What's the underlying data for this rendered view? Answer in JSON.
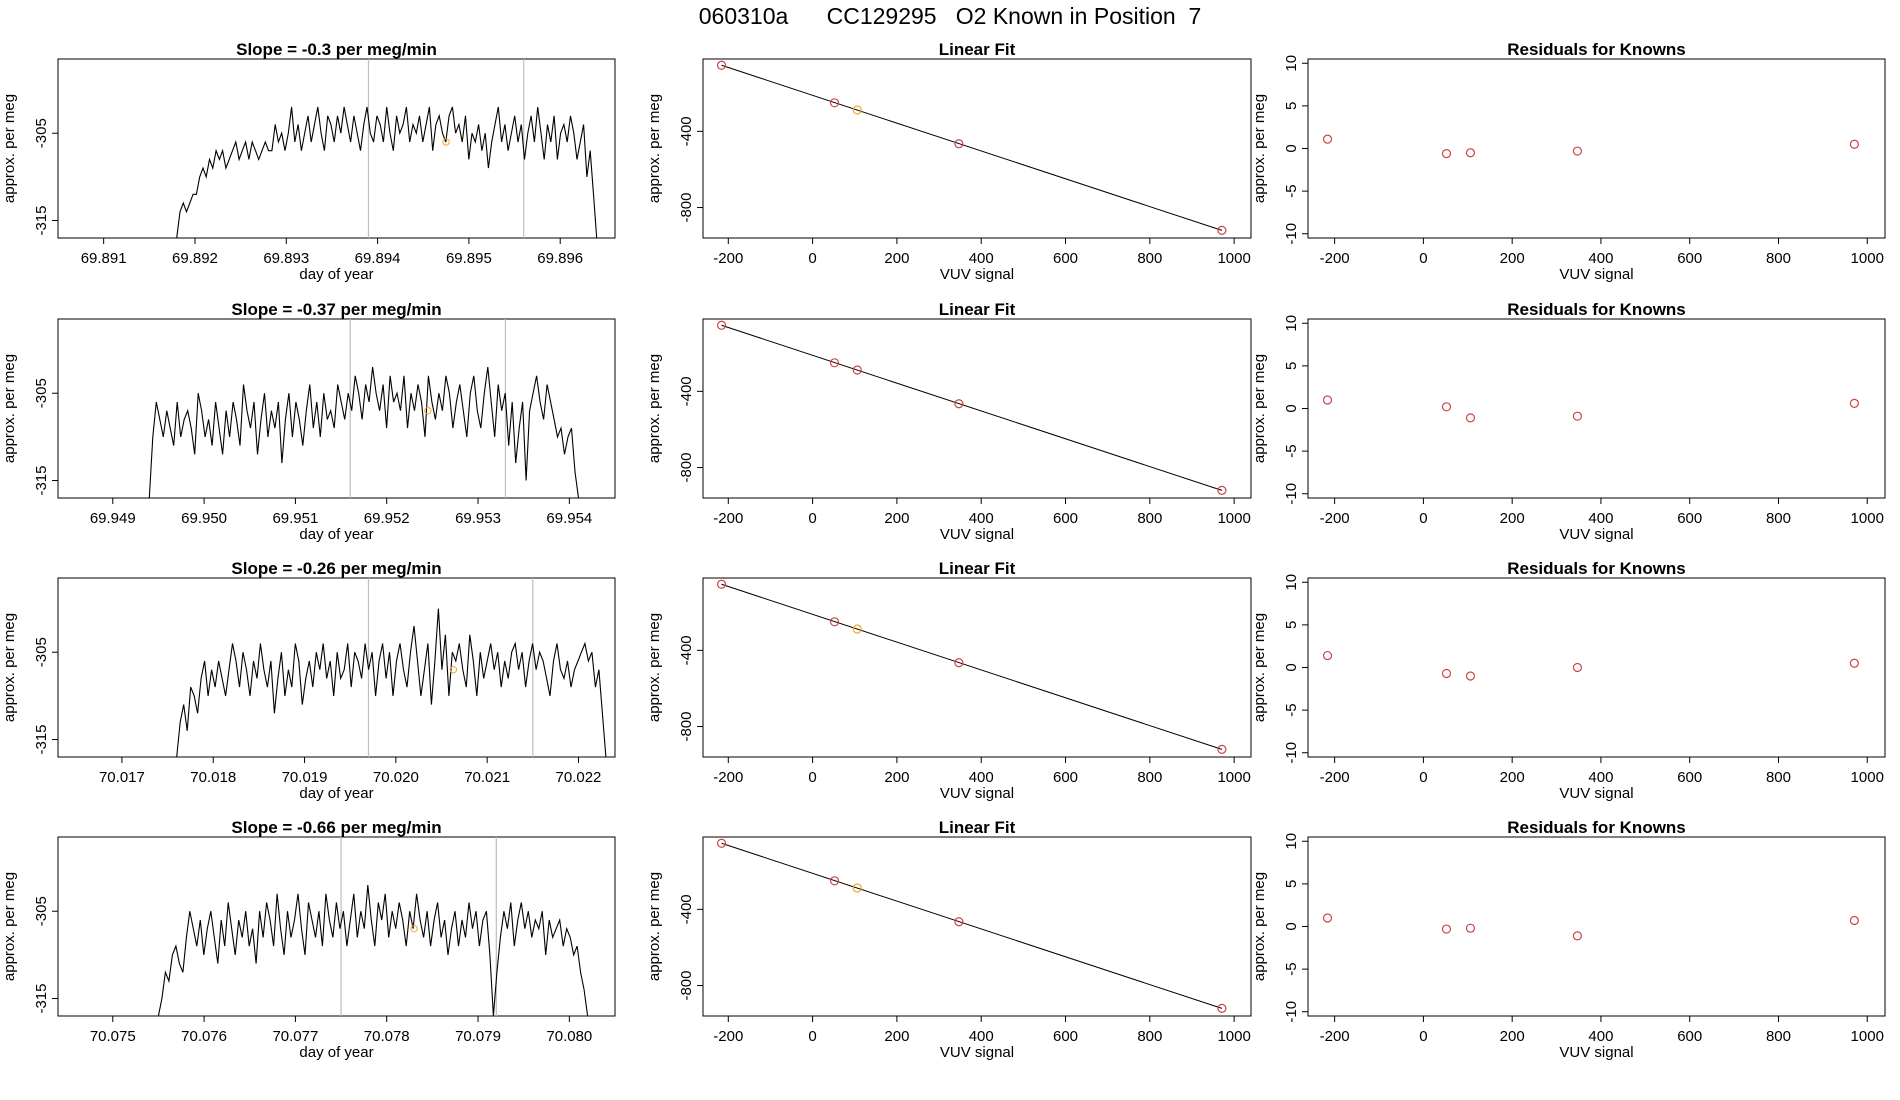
{
  "title": "060310a      CC129295   O2 Known in Position  7",
  "colors": {
    "trace": "#000000",
    "vline": "#bebebe",
    "orange": "#f5a623",
    "red": "#cd4444"
  },
  "chart_data": [
    {
      "type": "line",
      "title": "Slope =  -0.3  per meg/min",
      "xlabel": "day of year",
      "ylabel": "approx. per meg",
      "xlim": [
        69.8905,
        69.8966
      ],
      "ylim": [
        -317,
        -296.5
      ],
      "x_ticks": [
        "69.891",
        "69.892",
        "69.893",
        "69.894",
        "69.895",
        "69.896"
      ],
      "y_ticks": [
        "-315",
        "-305"
      ],
      "vlines": [
        69.8939,
        69.8956
      ],
      "trace": {
        "x_start": 69.8918,
        "x_end": 69.8964,
        "values": [
          -317,
          -314,
          -313,
          -314,
          -313,
          -312,
          -312,
          -310,
          -309,
          -310,
          -308,
          -309,
          -307,
          -308,
          -307,
          -309,
          -308,
          -307,
          -306,
          -308,
          -307,
          -306,
          -308,
          -306,
          -307,
          -308,
          -307,
          -306,
          -307,
          -307,
          -304,
          -306,
          -305,
          -307,
          -305,
          -302,
          -306,
          -304,
          -307,
          -305,
          -303,
          -306,
          -304,
          -302,
          -305,
          -307,
          -303,
          -304,
          -306,
          -303,
          -305,
          -302,
          -304,
          -306,
          -303,
          -305,
          -307,
          -304,
          -302,
          -305,
          -306,
          -303,
          -304,
          -306,
          -302,
          -305,
          -307,
          -303,
          -305,
          -304,
          -302,
          -306,
          -304,
          -305,
          -303,
          -306,
          -304,
          -302,
          -307,
          -304,
          -303,
          -305,
          -306,
          -303,
          -302,
          -305,
          -304,
          -306,
          -303,
          -308,
          -305,
          -306,
          -304,
          -307,
          -305,
          -309,
          -306,
          -304,
          -302,
          -306,
          -304,
          -307,
          -305,
          -303,
          -306,
          -304,
          -308,
          -305,
          -303,
          -306,
          -302,
          -305,
          -308,
          -304,
          -306,
          -303,
          -308,
          -305,
          -304,
          -306,
          -303,
          -305,
          -308,
          -306,
          -304,
          -310,
          -307,
          -312,
          -317
        ]
      },
      "marker": {
        "x": 69.89475,
        "y": -306
      }
    },
    {
      "type": "scatter",
      "title": "Linear Fit",
      "xlabel": "VUV signal",
      "ylabel": "approx. per meg",
      "xlim": [
        -260,
        1040
      ],
      "ylim": [
        -960,
        -20
      ],
      "x_ticks": [
        "-200",
        "0",
        "200",
        "400",
        "600",
        "800",
        "1000"
      ],
      "y_ticks": [
        "-800",
        "-400"
      ],
      "points": [
        {
          "x": -216,
          "y": -53,
          "color": "red"
        },
        {
          "x": 52,
          "y": -250,
          "color": "red"
        },
        {
          "x": 106,
          "y": -288,
          "color": "orange"
        },
        {
          "x": 347,
          "y": -465,
          "color": "red"
        },
        {
          "x": 971,
          "y": -920,
          "color": "red"
        }
      ],
      "fit_line": {
        "x": [
          -216,
          971
        ],
        "y": [
          -53,
          -920
        ]
      }
    },
    {
      "type": "scatter",
      "title": "Residuals for Knowns",
      "xlabel": "VUV signal",
      "ylabel": "approx. per meg",
      "xlim": [
        -260,
        1040
      ],
      "ylim": [
        -10.5,
        10.5
      ],
      "x_ticks": [
        "-200",
        "0",
        "200",
        "400",
        "600",
        "800",
        "1000"
      ],
      "y_ticks": [
        "-10",
        "-5",
        "0",
        "5",
        "10"
      ],
      "points": [
        {
          "x": -216,
          "y": 1.1,
          "color": "red"
        },
        {
          "x": 52,
          "y": -0.6,
          "color": "red"
        },
        {
          "x": 106,
          "y": -0.5,
          "color": "red"
        },
        {
          "x": 347,
          "y": -0.3,
          "color": "red"
        },
        {
          "x": 971,
          "y": 0.5,
          "color": "red"
        }
      ]
    },
    {
      "type": "line",
      "title": "Slope =  -0.37  per meg/min",
      "xlabel": "day of year",
      "ylabel": "approx. per meg",
      "xlim": [
        69.9484,
        69.9545
      ],
      "ylim": [
        -317,
        -296.5
      ],
      "x_ticks": [
        "69.949",
        "69.950",
        "69.951",
        "69.952",
        "69.953",
        "69.954"
      ],
      "y_ticks": [
        "-315",
        "-305"
      ],
      "vlines": [
        69.9516,
        69.9533
      ],
      "trace": {
        "x_start": 69.9494,
        "x_end": 69.9541,
        "values": [
          -317,
          -310,
          -306,
          -308,
          -310,
          -307,
          -309,
          -311,
          -306,
          -310,
          -308,
          -307,
          -309,
          -312,
          -305,
          -307,
          -310,
          -308,
          -311,
          -306,
          -309,
          -312,
          -307,
          -310,
          -306,
          -308,
          -311,
          -304,
          -307,
          -309,
          -306,
          -312,
          -308,
          -305,
          -310,
          -307,
          -309,
          -306,
          -313,
          -308,
          -305,
          -310,
          -306,
          -308,
          -311,
          -307,
          -304,
          -309,
          -306,
          -310,
          -305,
          -308,
          -307,
          -309,
          -304,
          -306,
          -308,
          -305,
          -307,
          -303,
          -305,
          -308,
          -304,
          -306,
          -302,
          -305,
          -307,
          -304,
          -309,
          -303,
          -306,
          -305,
          -307,
          -303,
          -309,
          -305,
          -307,
          -304,
          -306,
          -310,
          -303,
          -306,
          -308,
          -305,
          -307,
          -303,
          -305,
          -309,
          -306,
          -304,
          -307,
          -310,
          -305,
          -303,
          -307,
          -309,
          -305,
          -302,
          -306,
          -310,
          -304,
          -307,
          -305,
          -311,
          -306,
          -313,
          -309,
          -306,
          -315,
          -307,
          -305,
          -303,
          -306,
          -308,
          -304,
          -306,
          -308,
          -310,
          -309,
          -312,
          -310,
          -309,
          -314,
          -317
        ]
      },
      "marker": {
        "x": 69.95245,
        "y": -307
      }
    },
    {
      "type": "scatter",
      "title": "Linear Fit",
      "xlabel": "VUV signal",
      "ylabel": "approx. per meg",
      "xlim": [
        -260,
        1040
      ],
      "ylim": [
        -960,
        -20
      ],
      "x_ticks": [
        "-200",
        "0",
        "200",
        "400",
        "600",
        "800",
        "1000"
      ],
      "y_ticks": [
        "-800",
        "-400"
      ],
      "points": [
        {
          "x": -216,
          "y": -53,
          "color": "red"
        },
        {
          "x": 52,
          "y": -250,
          "color": "red"
        },
        {
          "x": 106,
          "y": -288,
          "color": "red"
        },
        {
          "x": 347,
          "y": -465,
          "color": "red"
        },
        {
          "x": 971,
          "y": -920,
          "color": "red"
        }
      ],
      "fit_line": {
        "x": [
          -216,
          971
        ],
        "y": [
          -53,
          -920
        ]
      }
    },
    {
      "type": "scatter",
      "title": "Residuals for Knowns",
      "xlabel": "VUV signal",
      "ylabel": "approx. per meg",
      "xlim": [
        -260,
        1040
      ],
      "ylim": [
        -10.5,
        10.5
      ],
      "x_ticks": [
        "-200",
        "0",
        "200",
        "400",
        "600",
        "800",
        "1000"
      ],
      "y_ticks": [
        "-10",
        "-5",
        "0",
        "5",
        "10"
      ],
      "points": [
        {
          "x": -216,
          "y": 1.0,
          "color": "red"
        },
        {
          "x": 52,
          "y": 0.2,
          "color": "red"
        },
        {
          "x": 106,
          "y": -1.1,
          "color": "red"
        },
        {
          "x": 347,
          "y": -0.9,
          "color": "red"
        },
        {
          "x": 971,
          "y": 0.6,
          "color": "red"
        }
      ]
    },
    {
      "type": "line",
      "title": "Slope =  -0.26  per meg/min",
      "xlabel": "day of year",
      "ylabel": "approx. per meg",
      "xlim": [
        70.0163,
        70.0224
      ],
      "ylim": [
        -317,
        -296.5
      ],
      "x_ticks": [
        "70.017",
        "70.018",
        "70.019",
        "70.020",
        "70.021",
        "70.022"
      ],
      "y_ticks": [
        "-315",
        "-305"
      ],
      "vlines": [
        70.0197,
        70.0215
      ],
      "trace": {
        "x_start": 70.0176,
        "x_end": 70.0223,
        "values": [
          -317,
          -313,
          -311,
          -314,
          -309,
          -310,
          -312,
          -308,
          -306,
          -310,
          -307,
          -309,
          -306,
          -308,
          -310,
          -307,
          -304,
          -306,
          -309,
          -305,
          -307,
          -310,
          -306,
          -308,
          -304,
          -307,
          -309,
          -306,
          -312,
          -308,
          -305,
          -310,
          -307,
          -309,
          -304,
          -306,
          -311,
          -308,
          -306,
          -309,
          -305,
          -307,
          -304,
          -308,
          -306,
          -310,
          -305,
          -308,
          -307,
          -304,
          -309,
          -305,
          -306,
          -308,
          -304,
          -307,
          -305,
          -310,
          -306,
          -304,
          -308,
          -305,
          -310,
          -306,
          -304,
          -307,
          -309,
          -305,
          -302,
          -306,
          -310,
          -307,
          -304,
          -311,
          -306,
          -300,
          -307,
          -303,
          -310,
          -305,
          -306,
          -304,
          -307,
          -309,
          -303,
          -306,
          -310,
          -305,
          -308,
          -306,
          -304,
          -307,
          -305,
          -309,
          -306,
          -308,
          -305,
          -304,
          -307,
          -305,
          -309,
          -306,
          -304,
          -307,
          -305,
          -306,
          -308,
          -310,
          -306,
          -304,
          -307,
          -308,
          -306,
          -309,
          -307,
          -306,
          -305,
          -304,
          -306,
          -305,
          -309,
          -307,
          -312,
          -317
        ]
      },
      "marker": {
        "x": 70.02063,
        "y": -307
      }
    },
    {
      "type": "scatter",
      "title": "Linear Fit",
      "xlabel": "VUV signal",
      "ylabel": "approx. per meg",
      "xlim": [
        -260,
        1040
      ],
      "ylim": [
        -960,
        -20
      ],
      "x_ticks": [
        "-200",
        "0",
        "200",
        "400",
        "600",
        "800",
        "1000"
      ],
      "y_ticks": [
        "-800",
        "-400"
      ],
      "points": [
        {
          "x": -216,
          "y": -53,
          "color": "red"
        },
        {
          "x": 52,
          "y": -250,
          "color": "red"
        },
        {
          "x": 106,
          "y": -288,
          "color": "orange"
        },
        {
          "x": 347,
          "y": -465,
          "color": "red"
        },
        {
          "x": 971,
          "y": -920,
          "color": "red"
        }
      ],
      "fit_line": {
        "x": [
          -216,
          971
        ],
        "y": [
          -53,
          -920
        ]
      }
    },
    {
      "type": "scatter",
      "title": "Residuals for Knowns",
      "xlabel": "VUV signal",
      "ylabel": "approx. per meg",
      "xlim": [
        -260,
        1040
      ],
      "ylim": [
        -10.5,
        10.5
      ],
      "x_ticks": [
        "-200",
        "0",
        "200",
        "400",
        "600",
        "800",
        "1000"
      ],
      "y_ticks": [
        "-10",
        "-5",
        "0",
        "5",
        "10"
      ],
      "points": [
        {
          "x": -216,
          "y": 1.4,
          "color": "red"
        },
        {
          "x": 52,
          "y": -0.7,
          "color": "red"
        },
        {
          "x": 106,
          "y": -1.0,
          "color": "red"
        },
        {
          "x": 347,
          "y": 0.0,
          "color": "red"
        },
        {
          "x": 971,
          "y": 0.5,
          "color": "red"
        }
      ]
    },
    {
      "type": "line",
      "title": "Slope =  -0.66  per meg/min",
      "xlabel": "day of year",
      "ylabel": "approx. per meg",
      "xlim": [
        70.0744,
        70.0805
      ],
      "ylim": [
        -317,
        -296.5
      ],
      "x_ticks": [
        "70.075",
        "70.076",
        "70.077",
        "70.078",
        "70.079",
        "70.080"
      ],
      "y_ticks": [
        "-315",
        "-305"
      ],
      "vlines": [
        70.0775,
        70.0792
      ],
      "trace": {
        "x_start": 70.0755,
        "x_end": 70.0802,
        "values": [
          -317,
          -315,
          -312,
          -313,
          -310,
          -309,
          -311,
          -312,
          -308,
          -305,
          -307,
          -309,
          -306,
          -310,
          -307,
          -305,
          -308,
          -311,
          -306,
          -309,
          -304,
          -307,
          -310,
          -306,
          -308,
          -305,
          -309,
          -307,
          -311,
          -305,
          -308,
          -304,
          -306,
          -309,
          -303,
          -307,
          -310,
          -305,
          -308,
          -306,
          -303,
          -307,
          -310,
          -304,
          -306,
          -308,
          -305,
          -309,
          -303,
          -306,
          -308,
          -304,
          -307,
          -305,
          -309,
          -306,
          -303,
          -308,
          -305,
          -307,
          -302,
          -306,
          -309,
          -304,
          -306,
          -303,
          -308,
          -305,
          -307,
          -304,
          -306,
          -309,
          -305,
          -307,
          -303,
          -306,
          -308,
          -305,
          -309,
          -306,
          -304,
          -308,
          -306,
          -310,
          -307,
          -305,
          -309,
          -306,
          -308,
          -304,
          -307,
          -305,
          -309,
          -306,
          -305,
          -310,
          -317,
          -312,
          -308,
          -305,
          -307,
          -304,
          -309,
          -306,
          -304,
          -307,
          -305,
          -308,
          -306,
          -307,
          -305,
          -310,
          -306,
          -308,
          -307,
          -306,
          -309,
          -307,
          -308,
          -310,
          -309,
          -312,
          -314,
          -317
        ]
      },
      "marker": {
        "x": 70.0783,
        "y": -307
      }
    },
    {
      "type": "scatter",
      "title": "Linear Fit",
      "xlabel": "VUV signal",
      "ylabel": "approx. per meg",
      "xlim": [
        -260,
        1040
      ],
      "ylim": [
        -960,
        -20
      ],
      "x_ticks": [
        "-200",
        "0",
        "200",
        "400",
        "600",
        "800",
        "1000"
      ],
      "y_ticks": [
        "-800",
        "-400"
      ],
      "points": [
        {
          "x": -216,
          "y": -53,
          "color": "red"
        },
        {
          "x": 52,
          "y": -250,
          "color": "red"
        },
        {
          "x": 106,
          "y": -288,
          "color": "orange"
        },
        {
          "x": 347,
          "y": -465,
          "color": "red"
        },
        {
          "x": 971,
          "y": -920,
          "color": "red"
        }
      ],
      "fit_line": {
        "x": [
          -216,
          971
        ],
        "y": [
          -53,
          -920
        ]
      }
    },
    {
      "type": "scatter",
      "title": "Residuals for Knowns",
      "xlabel": "VUV signal",
      "ylabel": "approx. per meg",
      "xlim": [
        -260,
        1040
      ],
      "ylim": [
        -10.5,
        10.5
      ],
      "x_ticks": [
        "-200",
        "0",
        "200",
        "400",
        "600",
        "800",
        "1000"
      ],
      "y_ticks": [
        "-10",
        "-5",
        "0",
        "5",
        "10"
      ],
      "points": [
        {
          "x": -216,
          "y": 1.0,
          "color": "red"
        },
        {
          "x": 52,
          "y": -0.3,
          "color": "red"
        },
        {
          "x": 106,
          "y": -0.2,
          "color": "red"
        },
        {
          "x": 347,
          "y": -1.1,
          "color": "red"
        },
        {
          "x": 971,
          "y": 0.7,
          "color": "red"
        }
      ]
    }
  ]
}
